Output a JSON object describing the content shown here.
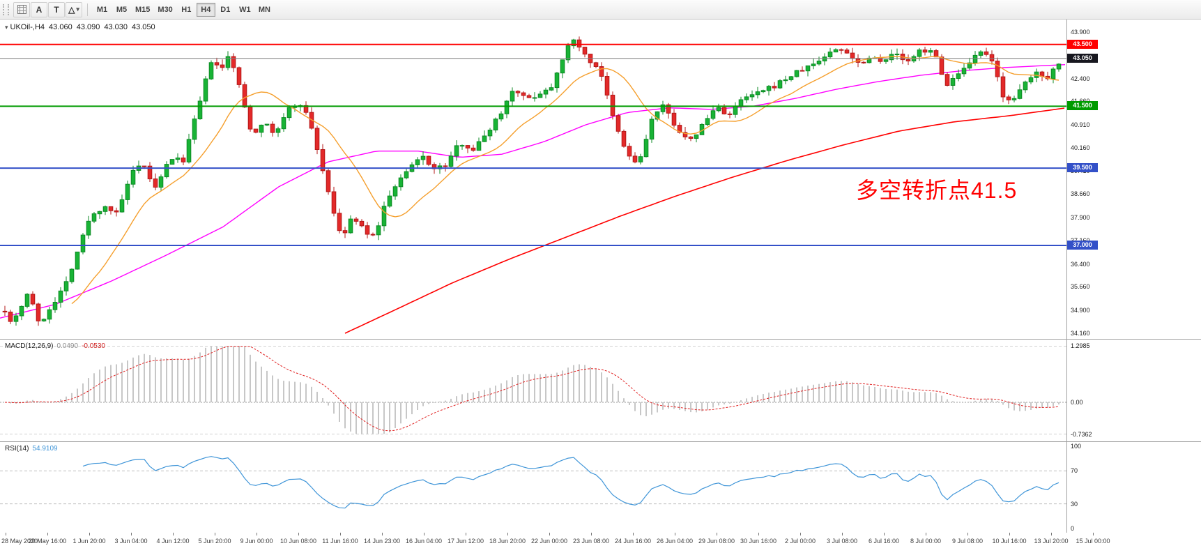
{
  "toolbar": {
    "tool_a_label": "A",
    "tool_t_label": "T",
    "shapes_tool_glyph": "△",
    "timeframes": [
      "M1",
      "M5",
      "M15",
      "M30",
      "H1",
      "H4",
      "D1",
      "W1",
      "MN"
    ],
    "active_timeframe": "H4"
  },
  "symbol_header": {
    "symbol": "UKOil-,H4",
    "open": "43.060",
    "high": "43.090",
    "low": "43.030",
    "close": "43.050"
  },
  "annotation": {
    "text": "多空转折点41.5",
    "color": "#ff0000"
  },
  "price_axis": {
    "labels": [
      "43.900",
      "42.400",
      "41.660",
      "40.910",
      "40.160",
      "39.410",
      "38.660",
      "37.900",
      "37.160",
      "36.400",
      "35.660",
      "34.900",
      "34.160"
    ],
    "badges": [
      {
        "text": "43.500",
        "price": 43.5,
        "color": "#ff0000"
      },
      {
        "text": "43.050",
        "price": 43.05,
        "color": "#17171f"
      },
      {
        "text": "41.500",
        "price": 41.5,
        "color": "#009b00"
      },
      {
        "text": "39.500",
        "price": 39.5,
        "color": "#3350c8"
      },
      {
        "text": "37.000",
        "price": 37.0,
        "color": "#3350c8"
      }
    ]
  },
  "macd": {
    "label": "MACD(12,26,9)",
    "value1": "0.0490",
    "value2": "-0.0530",
    "axis_labels": [
      "1.2985",
      "0.00",
      "-0.7362"
    ]
  },
  "rsi": {
    "label": "RSI(14)",
    "value": "54.9109",
    "axis_labels": [
      "100",
      "70",
      "30",
      "0"
    ],
    "levels": [
      70,
      30
    ]
  },
  "time_axis": {
    "labels": [
      "28 May 2020",
      "29 May 16:00",
      "1 Jun 20:00",
      "3 Jun 04:00",
      "4 Jun 12:00",
      "5 Jun 20:00",
      "9 Jun 00:00",
      "10 Jun 08:00",
      "11 Jun 16:00",
      "14 Jun 23:00",
      "16 Jun 04:00",
      "17 Jun 12:00",
      "18 Jun 20:00",
      "22 Jun 00:00",
      "23 Jun 08:00",
      "24 Jun 16:00",
      "26 Jun 04:00",
      "29 Jun 08:00",
      "30 Jun 16:00",
      "2 Jul 00:00",
      "3 Jul 08:00",
      "6 Jul 16:00",
      "8 Jul 00:00",
      "9 Jul 08:00",
      "10 Jul 16:00",
      "13 Jul 20:00",
      "15 Jul 00:00"
    ]
  },
  "chart_data": {
    "type": "candlestick",
    "symbol": "UKOil-",
    "timeframe": "H4",
    "ohlc_current": {
      "open": 43.06,
      "high": 43.09,
      "low": 43.03,
      "close": 43.05
    },
    "ylim": [
      34.16,
      43.9
    ],
    "current_price": 43.05,
    "candle_up_color": "#18b335",
    "candle_up_edge": "#0c8a24",
    "candle_down_color": "#e32929",
    "candle_down_edge": "#b31818",
    "hlines": [
      {
        "price": 43.5,
        "color": "#ff0000"
      },
      {
        "price": 41.5,
        "color": "#009b00"
      },
      {
        "price": 39.5,
        "color": "#3350c8"
      },
      {
        "price": 37.0,
        "color": "#3350c8"
      }
    ],
    "price_path_anchors": [
      [
        2,
        35.4
      ],
      [
        12,
        34.45
      ],
      [
        26,
        34.85
      ],
      [
        42,
        35.55
      ],
      [
        56,
        34.4
      ],
      [
        68,
        34.85
      ],
      [
        94,
        35.75
      ],
      [
        128,
        37.85
      ],
      [
        150,
        38.3
      ],
      [
        168,
        38.0
      ],
      [
        188,
        39.3
      ],
      [
        205,
        39.6
      ],
      [
        224,
        38.8
      ],
      [
        244,
        39.85
      ],
      [
        262,
        39.7
      ],
      [
        284,
        41.4
      ],
      [
        304,
        43.05
      ],
      [
        316,
        42.6
      ],
      [
        330,
        43.2
      ],
      [
        346,
        41.9
      ],
      [
        362,
        40.55
      ],
      [
        376,
        41.0
      ],
      [
        394,
        40.6
      ],
      [
        416,
        41.45
      ],
      [
        432,
        41.6
      ],
      [
        446,
        40.9
      ],
      [
        468,
        39.0
      ],
      [
        490,
        37.15
      ],
      [
        504,
        37.9
      ],
      [
        518,
        37.6
      ],
      [
        536,
        37.25
      ],
      [
        556,
        38.55
      ],
      [
        580,
        39.3
      ],
      [
        606,
        39.9
      ],
      [
        624,
        39.45
      ],
      [
        640,
        39.6
      ],
      [
        660,
        40.35
      ],
      [
        680,
        40.1
      ],
      [
        700,
        40.7
      ],
      [
        720,
        41.35
      ],
      [
        738,
        42.15
      ],
      [
        754,
        41.7
      ],
      [
        772,
        41.9
      ],
      [
        790,
        42.1
      ],
      [
        810,
        43.25
      ],
      [
        826,
        43.7
      ],
      [
        842,
        43.0
      ],
      [
        860,
        42.75
      ],
      [
        878,
        41.2
      ],
      [
        898,
        40.0
      ],
      [
        916,
        39.6
      ],
      [
        936,
        41.15
      ],
      [
        952,
        41.5
      ],
      [
        970,
        40.85
      ],
      [
        988,
        40.3
      ],
      [
        1008,
        40.9
      ],
      [
        1028,
        41.5
      ],
      [
        1046,
        41.2
      ],
      [
        1066,
        41.75
      ],
      [
        1086,
        41.9
      ],
      [
        1106,
        42.1
      ],
      [
        1128,
        42.4
      ],
      [
        1148,
        42.65
      ],
      [
        1170,
        42.9
      ],
      [
        1194,
        43.3
      ],
      [
        1212,
        43.35
      ],
      [
        1230,
        42.9
      ],
      [
        1250,
        43.1
      ],
      [
        1268,
        43.0
      ],
      [
        1284,
        43.2
      ],
      [
        1304,
        42.9
      ],
      [
        1320,
        43.3
      ],
      [
        1338,
        43.35
      ],
      [
        1356,
        42.2
      ],
      [
        1372,
        42.45
      ],
      [
        1390,
        42.8
      ],
      [
        1406,
        43.3
      ],
      [
        1424,
        42.9
      ],
      [
        1440,
        41.8
      ],
      [
        1456,
        41.7
      ],
      [
        1472,
        42.3
      ],
      [
        1488,
        42.6
      ],
      [
        1504,
        42.45
      ],
      [
        1516,
        42.85
      ],
      [
        1526,
        43.05
      ]
    ],
    "overlays": {
      "ma_fast_color": "#f59f2d",
      "ma_mid_color": "#ff00ff",
      "ma_mid_anchors": [
        [
          0,
          34.65
        ],
        [
          80,
          35.1
        ],
        [
          160,
          35.85
        ],
        [
          240,
          36.7
        ],
        [
          320,
          37.6
        ],
        [
          400,
          38.9
        ],
        [
          470,
          39.7
        ],
        [
          540,
          40.05
        ],
        [
          600,
          40.05
        ],
        [
          660,
          39.85
        ],
        [
          720,
          39.95
        ],
        [
          780,
          40.35
        ],
        [
          840,
          40.9
        ],
        [
          900,
          41.3
        ],
        [
          960,
          41.45
        ],
        [
          1020,
          41.4
        ],
        [
          1080,
          41.5
        ],
        [
          1140,
          41.75
        ],
        [
          1200,
          42.05
        ],
        [
          1260,
          42.3
        ],
        [
          1320,
          42.5
        ],
        [
          1380,
          42.65
        ],
        [
          1440,
          42.75
        ],
        [
          1530,
          42.85
        ]
      ],
      "ma_slow_color": "#ff0000",
      "ma_slow_anchors": [
        [
          495,
          34.16
        ],
        [
          570,
          34.95
        ],
        [
          650,
          35.8
        ],
        [
          730,
          36.55
        ],
        [
          810,
          37.25
        ],
        [
          890,
          37.95
        ],
        [
          970,
          38.6
        ],
        [
          1050,
          39.2
        ],
        [
          1130,
          39.75
        ],
        [
          1210,
          40.25
        ],
        [
          1290,
          40.7
        ],
        [
          1370,
          41.0
        ],
        [
          1450,
          41.2
        ],
        [
          1530,
          41.45
        ]
      ]
    },
    "indicators": {
      "macd": {
        "params": [
          12,
          26,
          9
        ],
        "main_value": 0.049,
        "signal_value": -0.053,
        "scale_range": [
          -0.7362,
          1.2985
        ]
      },
      "rsi": {
        "period": 14,
        "value": 54.9109,
        "levels": [
          30,
          70
        ],
        "scale_range": [
          0,
          100
        ]
      }
    }
  }
}
